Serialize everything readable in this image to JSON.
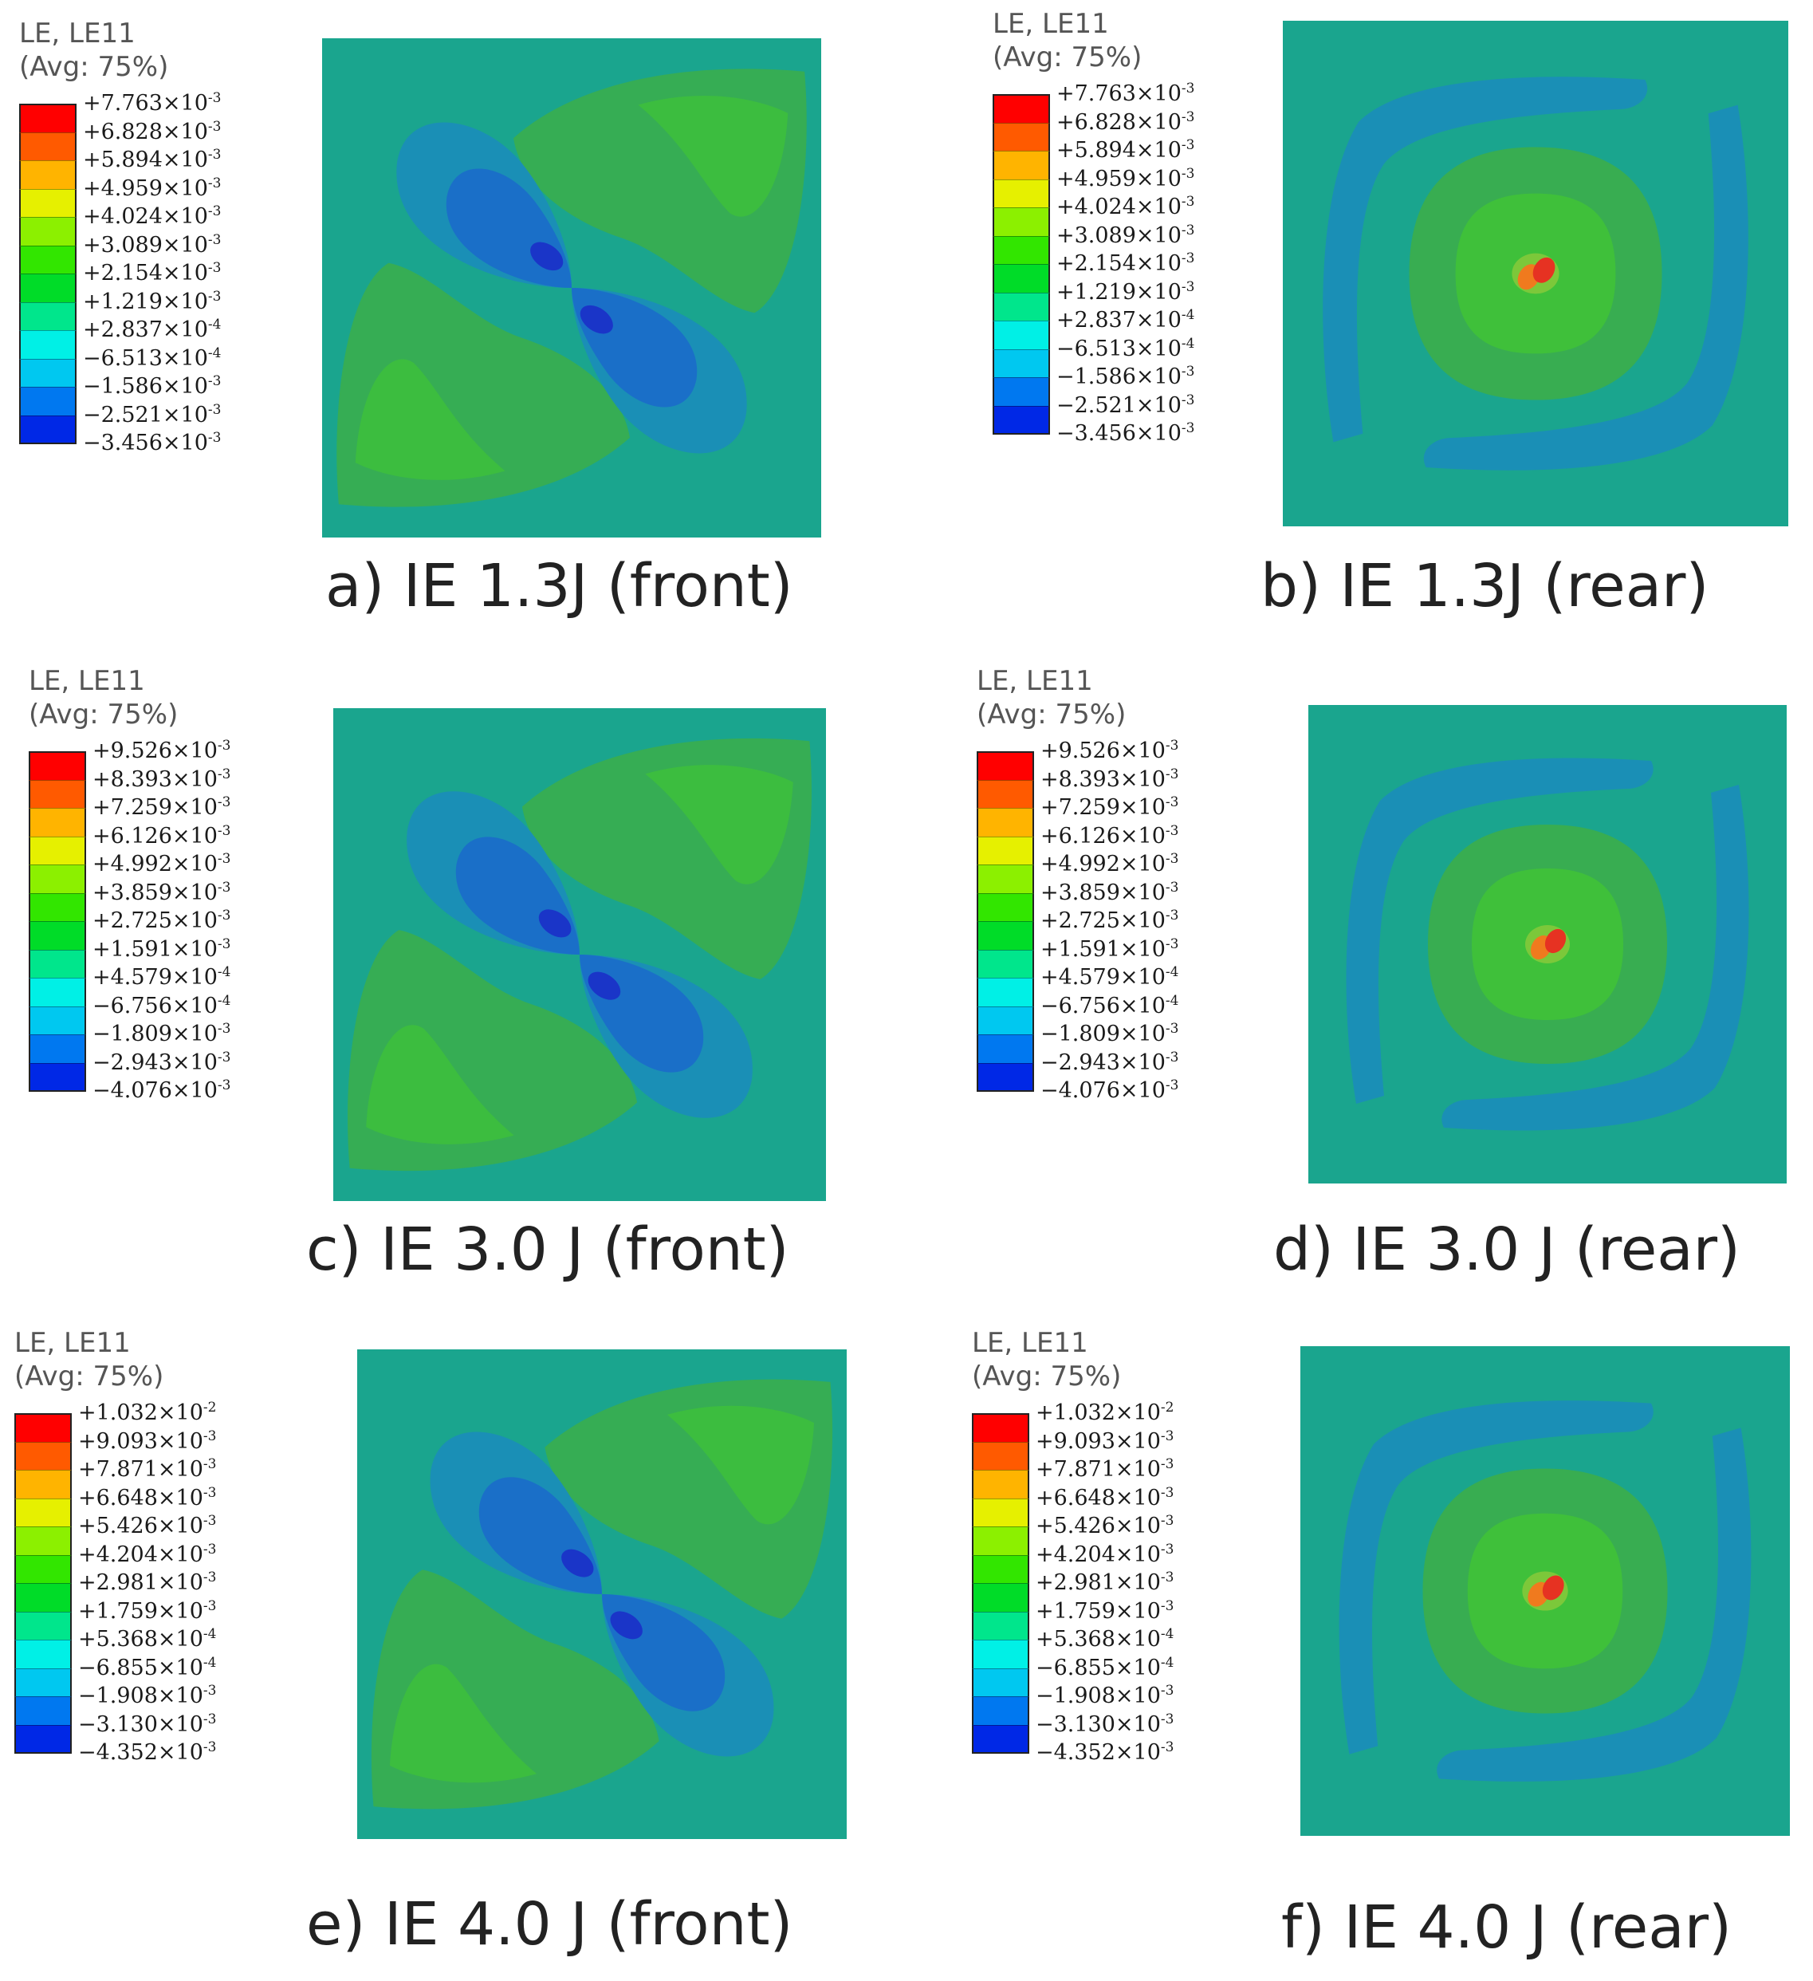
{
  "legend_common": {
    "line1": "LE, LE11",
    "line2": "(Avg: 75%)"
  },
  "band_colors": [
    "#ff0000",
    "#ff5a00",
    "#ffb400",
    "#e6f000",
    "#8cf000",
    "#32e600",
    "#00dc28",
    "#00e68c",
    "#00f0e6",
    "#00c8f0",
    "#0078f0",
    "#0028e6"
  ],
  "scales": [
    [
      "+7.763×10",
      "-3",
      "+6.828×10",
      "-3",
      "+5.894×10",
      "-3",
      "+4.959×10",
      "-3",
      "+4.024×10",
      "-3",
      "+3.089×10",
      "-3",
      "+2.154×10",
      "-3",
      "+1.219×10",
      "-3",
      "+2.837×10",
      "-4",
      "−6.513×10",
      "-4",
      "−1.586×10",
      "-3",
      "−2.521×10",
      "-3",
      "−3.456×10",
      "-3"
    ],
    [
      "+9.526×10",
      "-3",
      "+8.393×10",
      "-3",
      "+7.259×10",
      "-3",
      "+6.126×10",
      "-3",
      "+4.992×10",
      "-3",
      "+3.859×10",
      "-3",
      "+2.725×10",
      "-3",
      "+1.591×10",
      "-3",
      "+4.579×10",
      "-4",
      "−6.756×10",
      "-4",
      "−1.809×10",
      "-3",
      "−2.943×10",
      "-3",
      "−4.076×10",
      "-3"
    ],
    [
      "+1.032×10",
      "-2",
      "+9.093×10",
      "-3",
      "+7.871×10",
      "-3",
      "+6.648×10",
      "-3",
      "+5.426×10",
      "-3",
      "+4.204×10",
      "-3",
      "+2.981×10",
      "-3",
      "+1.759×10",
      "-3",
      "+5.368×10",
      "-4",
      "−6.855×10",
      "-4",
      "−1.908×10",
      "-3",
      "−3.130×10",
      "-3",
      "−4.352×10",
      "-3"
    ]
  ],
  "panels": [
    {
      "caption": "a) IE 1.3J (front)",
      "scale": 0,
      "view": "front"
    },
    {
      "caption": "b) IE 1.3J (rear)",
      "scale": 0,
      "view": "rear"
    },
    {
      "caption": "c) IE 3.0 J (front)",
      "scale": 1,
      "view": "front"
    },
    {
      "caption": "d) IE 3.0 J (rear)",
      "scale": 1,
      "view": "rear"
    },
    {
      "caption": "e) IE 4.0 J (front)",
      "scale": 2,
      "view": "front"
    },
    {
      "caption": "f) IE 4.0 J (rear)",
      "scale": 2,
      "view": "rear"
    }
  ],
  "colors": {
    "base": "#1aa58e",
    "light_blue": "#1a8fb6",
    "blue": "#1a6fc8",
    "deep_blue": "#1a35c8",
    "green": "#3cae4a",
    "bright_green": "#3fc03a",
    "yellow_green": "#7cc83a",
    "red": "#e63222",
    "orange": "#f07a1e"
  }
}
